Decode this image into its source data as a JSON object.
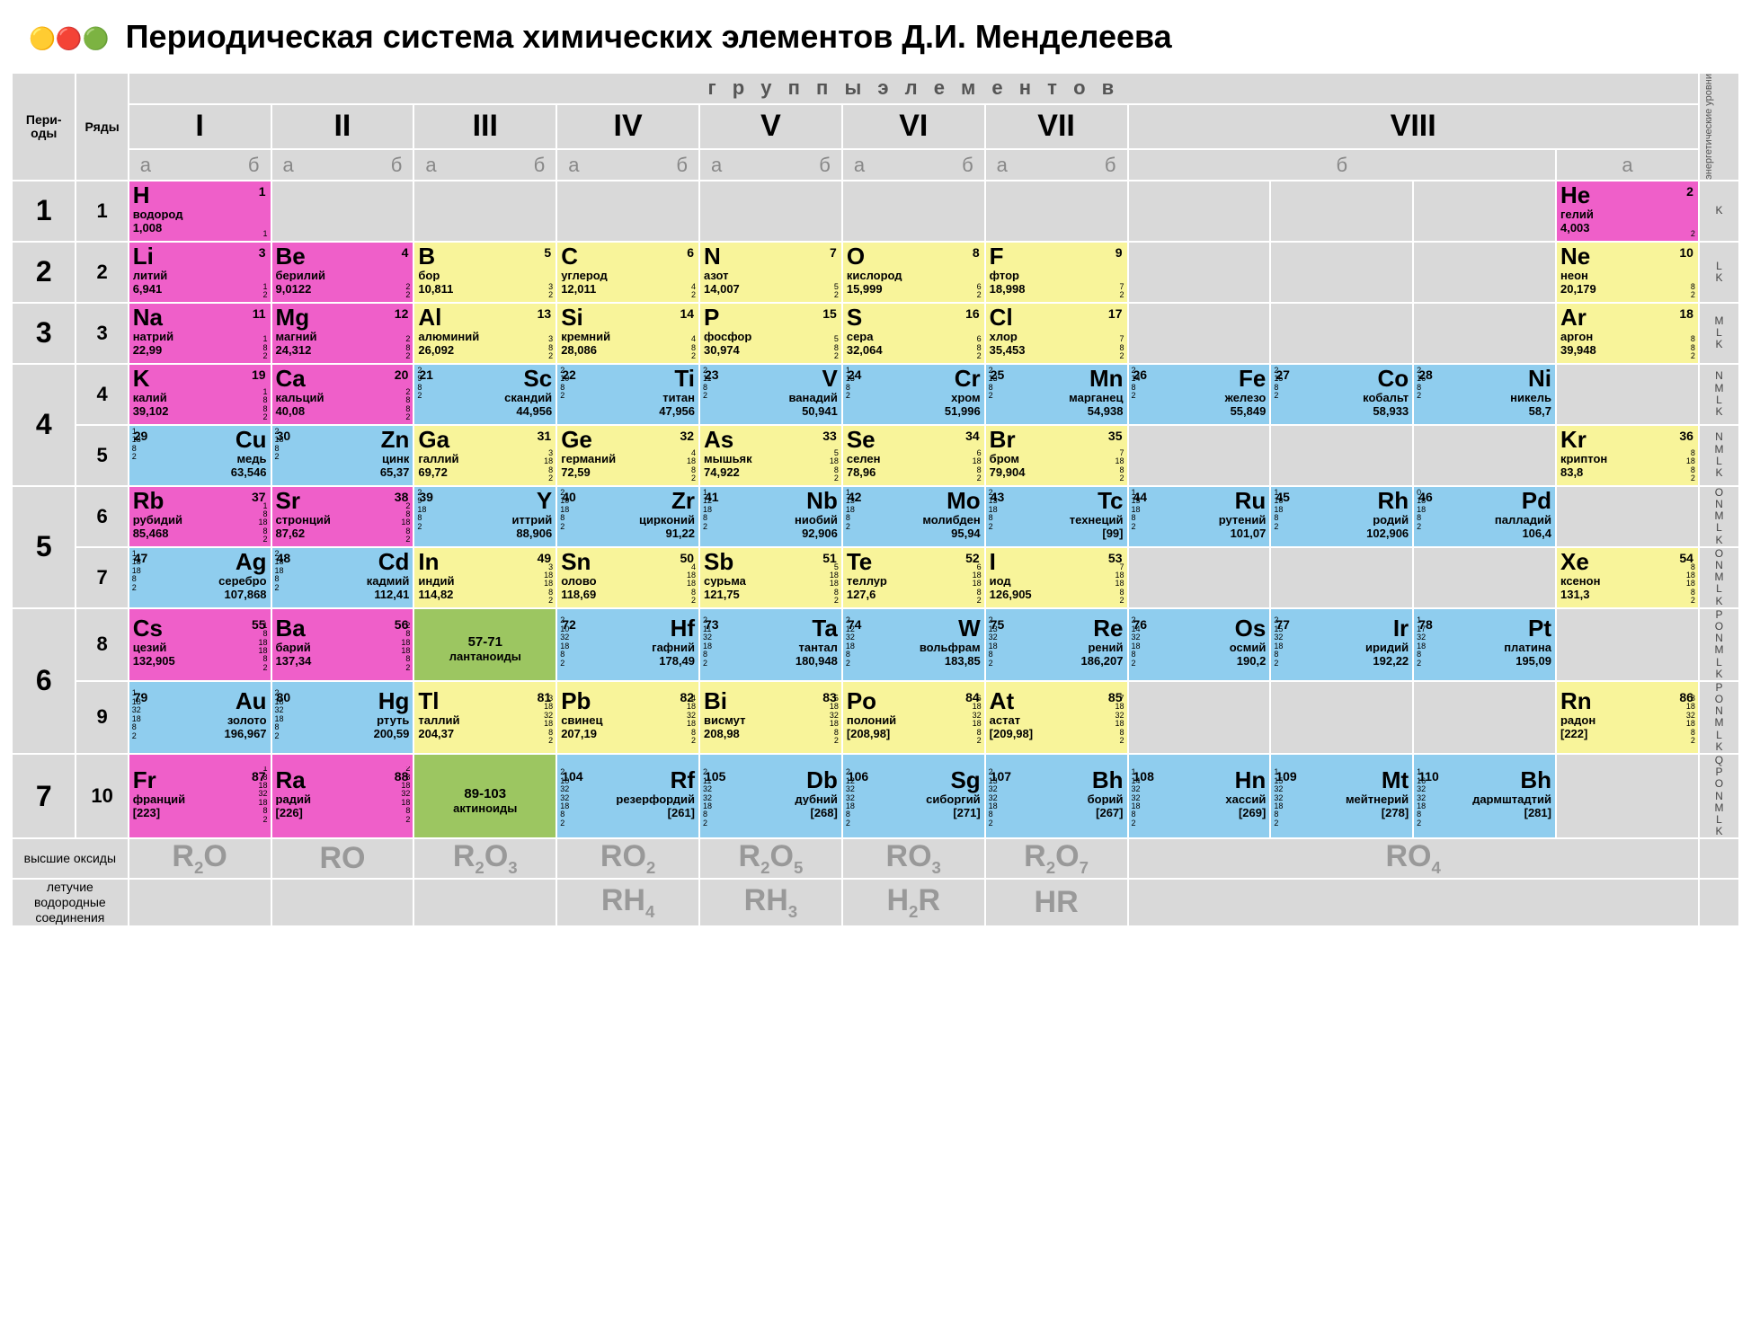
{
  "title": "Периодическая система химических элементов Д.И. Менделеева",
  "labels": {
    "groups": "г р у п п ы   э л е м е н т о в",
    "periods": "Пери-\nоды",
    "rows": "Ряды",
    "energy_levels": "энергетические уровни",
    "highest_oxides": "высшие оксиды",
    "volatile_h_compounds": "летучие водородные соединения",
    "lanthanoids": "лантаноиды",
    "lanthanoids_range": "57-71",
    "actinoids": "актиноиды",
    "actinoids_range": "89-103"
  },
  "groups_roman": [
    "I",
    "II",
    "III",
    "IV",
    "V",
    "VI",
    "VII",
    "VIII"
  ],
  "subgroups": [
    "а",
    "б"
  ],
  "colors": {
    "pink": "#ef5fc9",
    "yellow": "#f8f49a",
    "blue": "#8fcdee",
    "green": "#9cc661",
    "gray": "#d9d9d9",
    "white": "#ffffff"
  },
  "oxides": [
    "R₂O",
    "RO",
    "R₂O₃",
    "RO₂",
    "R₂O₅",
    "RO₃",
    "R₂O₇",
    "RO₄"
  ],
  "h_compounds": [
    "",
    "",
    "",
    "RH₄",
    "RH₃",
    "H₂R",
    "HR",
    ""
  ],
  "level_labels": {
    "r1": "K",
    "r2": "L K",
    "r3": "M L K",
    "r4": "N M L K",
    "r5": "N M L K",
    "r6": "O N M L K",
    "r7": "O N M L K",
    "r8": "P O N M L K",
    "r9": "P O N M L K",
    "r10": "Q P O N M L K"
  },
  "elements": {
    "H": {
      "num": 1,
      "name": "водород",
      "mass": "1,008",
      "color": "pink",
      "e": "1"
    },
    "He": {
      "num": 2,
      "name": "гелий",
      "mass": "4,003",
      "color": "pink",
      "e": "2"
    },
    "Li": {
      "num": 3,
      "name": "литий",
      "mass": "6,941",
      "color": "pink",
      "e": "1 2"
    },
    "Be": {
      "num": 4,
      "name": "берилий",
      "mass": "9,0122",
      "color": "pink",
      "e": "2 2"
    },
    "B": {
      "num": 5,
      "name": "бор",
      "mass": "10,811",
      "color": "yellow",
      "e": "3 2"
    },
    "C": {
      "num": 6,
      "name": "углерод",
      "mass": "12,011",
      "color": "yellow",
      "e": "4 2"
    },
    "N": {
      "num": 7,
      "name": "азот",
      "mass": "14,007",
      "color": "yellow",
      "e": "5 2"
    },
    "O": {
      "num": 8,
      "name": "кислород",
      "mass": "15,999",
      "color": "yellow",
      "e": "6 2"
    },
    "F": {
      "num": 9,
      "name": "фтор",
      "mass": "18,998",
      "color": "yellow",
      "e": "7 2"
    },
    "Ne": {
      "num": 10,
      "name": "неон",
      "mass": "20,179",
      "color": "yellow",
      "e": "8 2"
    },
    "Na": {
      "num": 11,
      "name": "натрий",
      "mass": "22,99",
      "color": "pink",
      "e": "1 8 2"
    },
    "Mg": {
      "num": 12,
      "name": "магний",
      "mass": "24,312",
      "color": "pink",
      "e": "2 8 2"
    },
    "Al": {
      "num": 13,
      "name": "алюминий",
      "mass": "26,092",
      "color": "yellow",
      "e": "3 8 2"
    },
    "Si": {
      "num": 14,
      "name": "кремний",
      "mass": "28,086",
      "color": "yellow",
      "e": "4 8 2"
    },
    "P": {
      "num": 15,
      "name": "фосфор",
      "mass": "30,974",
      "color": "yellow",
      "e": "5 8 2"
    },
    "S": {
      "num": 16,
      "name": "сера",
      "mass": "32,064",
      "color": "yellow",
      "e": "6 8 2"
    },
    "Cl": {
      "num": 17,
      "name": "хлор",
      "mass": "35,453",
      "color": "yellow",
      "e": "7 8 2"
    },
    "Ar": {
      "num": 18,
      "name": "аргон",
      "mass": "39,948",
      "color": "yellow",
      "e": "8 8 2"
    },
    "K": {
      "num": 19,
      "name": "калий",
      "mass": "39,102",
      "color": "pink",
      "e": "1 8 8 2"
    },
    "Ca": {
      "num": 20,
      "name": "кальций",
      "mass": "40,08",
      "color": "pink",
      "e": "2 8 8 2"
    },
    "Sc": {
      "num": 21,
      "name": "скандий",
      "mass": "44,956",
      "color": "blue",
      "e": "2 9 8 2"
    },
    "Ti": {
      "num": 22,
      "name": "титан",
      "mass": "47,956",
      "color": "blue",
      "e": "2 10 8 2"
    },
    "V": {
      "num": 23,
      "name": "ванадий",
      "mass": "50,941",
      "color": "blue",
      "e": "2 11 8 2"
    },
    "Cr": {
      "num": 24,
      "name": "хром",
      "mass": "51,996",
      "color": "blue",
      "e": "1 13 8 2"
    },
    "Mn": {
      "num": 25,
      "name": "марганец",
      "mass": "54,938",
      "color": "blue",
      "e": "2 13 8 2"
    },
    "Fe": {
      "num": 26,
      "name": "железо",
      "mass": "55,849",
      "color": "blue",
      "e": "2 14 8 2"
    },
    "Co": {
      "num": 27,
      "name": "кобальт",
      "mass": "58,933",
      "color": "blue",
      "e": "2 15 8 2"
    },
    "Ni": {
      "num": 28,
      "name": "никель",
      "mass": "58,7",
      "color": "blue",
      "e": "2 16 8 2"
    },
    "Cu": {
      "num": 29,
      "name": "медь",
      "mass": "63,546",
      "color": "blue",
      "e": "1 18 8 2"
    },
    "Zn": {
      "num": 30,
      "name": "цинк",
      "mass": "65,37",
      "color": "blue",
      "e": "2 18 8 2"
    },
    "Ga": {
      "num": 31,
      "name": "галлий",
      "mass": "69,72",
      "color": "yellow",
      "e": "3 18 8 2"
    },
    "Ge": {
      "num": 32,
      "name": "германий",
      "mass": "72,59",
      "color": "yellow",
      "e": "4 18 8 2"
    },
    "As": {
      "num": 33,
      "name": "мышьяк",
      "mass": "74,922",
      "color": "yellow",
      "e": "5 18 8 2"
    },
    "Se": {
      "num": 34,
      "name": "селен",
      "mass": "78,96",
      "color": "yellow",
      "e": "6 18 8 2"
    },
    "Br": {
      "num": 35,
      "name": "бром",
      "mass": "79,904",
      "color": "yellow",
      "e": "7 18 8 2"
    },
    "Kr": {
      "num": 36,
      "name": "криптон",
      "mass": "83,8",
      "color": "yellow",
      "e": "8 18 8 2"
    },
    "Rb": {
      "num": 37,
      "name": "рубидий",
      "mass": "85,468",
      "color": "pink",
      "e": "1 8 18 8 2"
    },
    "Sr": {
      "num": 38,
      "name": "стронций",
      "mass": "87,62",
      "color": "pink",
      "e": "2 8 18 8 2"
    },
    "Y": {
      "num": 39,
      "name": "иттрий",
      "mass": "88,906",
      "color": "blue",
      "e": "2 9 18 8 2"
    },
    "Zr": {
      "num": 40,
      "name": "цирконий",
      "mass": "91,22",
      "color": "blue",
      "e": "2 10 18 8 2"
    },
    "Nb": {
      "num": 41,
      "name": "ниобий",
      "mass": "92,906",
      "color": "blue",
      "e": "1 12 18 8 2"
    },
    "Mo": {
      "num": 42,
      "name": "молибден",
      "mass": "95,94",
      "color": "blue",
      "e": "1 13 18 8 2"
    },
    "Tc": {
      "num": 43,
      "name": "технеций",
      "mass": "[99]",
      "color": "blue",
      "e": "2 13 18 8 2"
    },
    "Ru": {
      "num": 44,
      "name": "рутений",
      "mass": "101,07",
      "color": "blue",
      "e": "1 15 18 8 2"
    },
    "Rh": {
      "num": 45,
      "name": "родий",
      "mass": "102,906",
      "color": "blue",
      "e": "1 16 18 8 2"
    },
    "Pd": {
      "num": 46,
      "name": "палладий",
      "mass": "106,4",
      "color": "blue",
      "e": "0 18 18 8 2"
    },
    "Ag": {
      "num": 47,
      "name": "серебро",
      "mass": "107,868",
      "color": "blue",
      "e": "1 18 18 8 2"
    },
    "Cd": {
      "num": 48,
      "name": "кадмий",
      "mass": "112,41",
      "color": "blue",
      "e": "2 18 18 8 2"
    },
    "In": {
      "num": 49,
      "name": "индий",
      "mass": "114,82",
      "color": "yellow",
      "e": "3 18 18 8 2"
    },
    "Sn": {
      "num": 50,
      "name": "олово",
      "mass": "118,69",
      "color": "yellow",
      "e": "4 18 18 8 2"
    },
    "Sb": {
      "num": 51,
      "name": "сурьма",
      "mass": "121,75",
      "color": "yellow",
      "e": "5 18 18 8 2"
    },
    "Te": {
      "num": 52,
      "name": "теллур",
      "mass": "127,6",
      "color": "yellow",
      "e": "6 18 18 8 2"
    },
    "I": {
      "num": 53,
      "name": "иод",
      "mass": "126,905",
      "color": "yellow",
      "e": "7 18 18 8 2"
    },
    "Xe": {
      "num": 54,
      "name": "ксенон",
      "mass": "131,3",
      "color": "yellow",
      "e": "8 18 18 8 2"
    },
    "Cs": {
      "num": 55,
      "name": "цезий",
      "mass": "132,905",
      "color": "pink",
      "e": "1 8 18 18 8 2"
    },
    "Ba": {
      "num": 56,
      "name": "барий",
      "mass": "137,34",
      "color": "pink",
      "e": "2 8 18 18 8 2"
    },
    "Hf": {
      "num": 72,
      "name": "гафний",
      "mass": "178,49",
      "color": "blue",
      "e": "2 10 32 18 8 2"
    },
    "Ta": {
      "num": 73,
      "name": "тантал",
      "mass": "180,948",
      "color": "blue",
      "e": "2 11 32 18 8 2"
    },
    "W": {
      "num": 74,
      "name": "вольфрам",
      "mass": "183,85",
      "color": "blue",
      "e": "2 12 32 18 8 2"
    },
    "Re": {
      "num": 75,
      "name": "рений",
      "mass": "186,207",
      "color": "blue",
      "e": "2 13 32 18 8 2"
    },
    "Os": {
      "num": 76,
      "name": "осмий",
      "mass": "190,2",
      "color": "blue",
      "e": "2 14 32 18 8 2"
    },
    "Ir": {
      "num": 77,
      "name": "иридий",
      "mass": "192,22",
      "color": "blue",
      "e": "2 15 32 18 8 2"
    },
    "Pt": {
      "num": 78,
      "name": "платина",
      "mass": "195,09",
      "color": "blue",
      "e": "1 17 32 18 8 2"
    },
    "Au": {
      "num": 79,
      "name": "золото",
      "mass": "196,967",
      "color": "blue",
      "e": "1 18 32 18 8 2"
    },
    "Hg": {
      "num": 80,
      "name": "ртуть",
      "mass": "200,59",
      "color": "blue",
      "e": "2 18 32 18 8 2"
    },
    "Tl": {
      "num": 81,
      "name": "таллий",
      "mass": "204,37",
      "color": "yellow",
      "e": "3 18 32 18 8 2"
    },
    "Pb": {
      "num": 82,
      "name": "свинец",
      "mass": "207,19",
      "color": "yellow",
      "e": "4 18 32 18 8 2"
    },
    "Bi": {
      "num": 83,
      "name": "висмут",
      "mass": "208,98",
      "color": "yellow",
      "e": "5 18 32 18 8 2"
    },
    "Po": {
      "num": 84,
      "name": "полоний",
      "mass": "[208,98]",
      "color": "yellow",
      "e": "6 18 32 18 8 2"
    },
    "At": {
      "num": 85,
      "name": "астат",
      "mass": "[209,98]",
      "color": "yellow",
      "e": "7 18 32 18 8 2"
    },
    "Rn": {
      "num": 86,
      "name": "радон",
      "mass": "[222]",
      "color": "yellow",
      "e": "8 18 32 18 8 2"
    },
    "Fr": {
      "num": 87,
      "name": "франций",
      "mass": "[223]",
      "color": "pink",
      "e": "1 8 18 32 18 8 2"
    },
    "Ra": {
      "num": 88,
      "name": "радий",
      "mass": "[226]",
      "color": "pink",
      "e": "2 8 18 32 18 8 2"
    },
    "Rf": {
      "num": 104,
      "name": "резерфордий",
      "mass": "[261]",
      "color": "blue",
      "e": "2 10 32 32 18 8 2"
    },
    "Db": {
      "num": 105,
      "name": "дубний",
      "mass": "[268]",
      "color": "blue",
      "e": "2 11 32 32 18 8 2"
    },
    "Sg": {
      "num": 106,
      "name": "сиборгий",
      "mass": "[271]",
      "color": "blue",
      "e": "2 12 32 32 18 8 2"
    },
    "Bh": {
      "num": 107,
      "name": "борий",
      "mass": "[267]",
      "color": "blue",
      "e": "2 13 32 32 18 8 2"
    },
    "Hn": {
      "num": 108,
      "name": "хассий",
      "mass": "[269]",
      "color": "blue",
      "e": "1 14 32 32 18 8 2"
    },
    "Mt": {
      "num": 109,
      "name": "мейтнерий",
      "mass": "[278]",
      "color": "blue",
      "e": "1 15 32 32 18 8 2"
    },
    "Bh2": {
      "num": 110,
      "name": "дармштадтий",
      "mass": "[281]",
      "color": "blue",
      "e": "1 16 32 32 18 8 2"
    }
  },
  "layout": [
    {
      "period": "1",
      "rows": [
        {
          "row": "1",
          "cells": [
            "H",
            "",
            "",
            "",
            "",
            "",
            "",
            "",
            "",
            "",
            "He"
          ],
          "align": "a"
        }
      ]
    },
    {
      "period": "2",
      "rows": [
        {
          "row": "2",
          "cells": [
            "Li",
            "Be",
            "B",
            "C",
            "N",
            "O",
            "F",
            "",
            "",
            "",
            "Ne"
          ],
          "align": "a"
        }
      ]
    },
    {
      "period": "3",
      "rows": [
        {
          "row": "3",
          "cells": [
            "Na",
            "Mg",
            "Al",
            "Si",
            "P",
            "S",
            "Cl",
            "",
            "",
            "",
            "Ar"
          ],
          "align": "a"
        }
      ]
    },
    {
      "period": "4",
      "rows": [
        {
          "row": "4",
          "cells": [
            "K",
            "Ca",
            "Sc",
            "Ti",
            "V",
            "Cr",
            "Mn",
            "Fe",
            "Co",
            "Ni",
            ""
          ],
          "align": "b"
        },
        {
          "row": "5",
          "cells": [
            "Cu",
            "Zn",
            "Ga",
            "Ge",
            "As",
            "Se",
            "Br",
            "",
            "",
            "",
            "Kr"
          ],
          "align": "ba"
        }
      ]
    },
    {
      "period": "5",
      "rows": [
        {
          "row": "6",
          "cells": [
            "Rb",
            "Sr",
            "Y",
            "Zr",
            "Nb",
            "Mo",
            "Tc",
            "Ru",
            "Rh",
            "Pd",
            ""
          ],
          "align": "b"
        },
        {
          "row": "7",
          "cells": [
            "Ag",
            "Cd",
            "In",
            "Sn",
            "Sb",
            "Te",
            "I",
            "",
            "",
            "",
            "Xe"
          ],
          "align": "ba"
        }
      ]
    },
    {
      "period": "6",
      "rows": [
        {
          "row": "8",
          "cells": [
            "Cs",
            "Ba",
            "LANT",
            "Hf",
            "Ta",
            "W",
            "Re",
            "Os",
            "Ir",
            "Pt",
            ""
          ],
          "align": "b"
        },
        {
          "row": "9",
          "cells": [
            "Au",
            "Hg",
            "Tl",
            "Pb",
            "Bi",
            "Po",
            "At",
            "",
            "",
            "",
            "Rn"
          ],
          "align": "ba"
        }
      ]
    },
    {
      "period": "7",
      "rows": [
        {
          "row": "10",
          "cells": [
            "Fr",
            "Ra",
            "ACT",
            "Rf",
            "Db",
            "Sg",
            "Bh",
            "Hn",
            "Mt",
            "Bh2",
            ""
          ],
          "align": "b"
        }
      ]
    }
  ]
}
